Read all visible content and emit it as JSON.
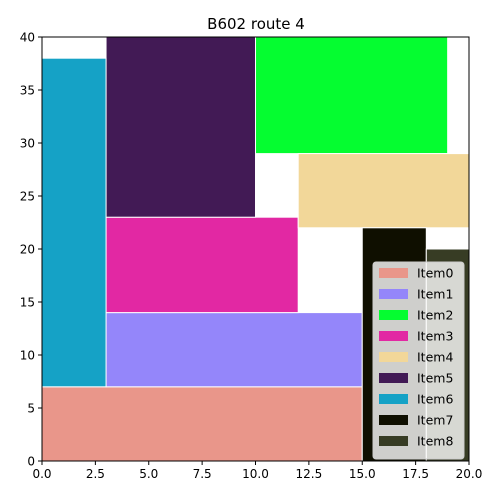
{
  "chart_data": {
    "type": "rect_packing",
    "title": "B602 route 4",
    "xlim": [
      0,
      20
    ],
    "ylim": [
      0,
      40
    ],
    "x_ticks": [
      {
        "value": 0,
        "label": "0.0"
      },
      {
        "value": 2.5,
        "label": "2.5"
      },
      {
        "value": 5,
        "label": "5.0"
      },
      {
        "value": 7.5,
        "label": "7.5"
      },
      {
        "value": 10,
        "label": "10.0"
      },
      {
        "value": 12.5,
        "label": "12.5"
      },
      {
        "value": 15,
        "label": "15.0"
      },
      {
        "value": 17.5,
        "label": "17.5"
      },
      {
        "value": 20,
        "label": "20.0"
      }
    ],
    "y_ticks": [
      {
        "value": 0,
        "label": "0"
      },
      {
        "value": 5,
        "label": "5"
      },
      {
        "value": 10,
        "label": "10"
      },
      {
        "value": 15,
        "label": "15"
      },
      {
        "value": 20,
        "label": "20"
      },
      {
        "value": 25,
        "label": "25"
      },
      {
        "value": 30,
        "label": "30"
      },
      {
        "value": 35,
        "label": "35"
      },
      {
        "value": 40,
        "label": "40"
      }
    ],
    "legend_position": "lower right",
    "grid": false,
    "items": [
      {
        "name": "Item0",
        "color": "#e9968a",
        "x": 0,
        "y": 0,
        "w": 15,
        "h": 7
      },
      {
        "name": "Item1",
        "color": "#9486fa",
        "x": 3,
        "y": 7,
        "w": 12,
        "h": 7
      },
      {
        "name": "Item2",
        "color": "#05fd30",
        "x": 10,
        "y": 29,
        "w": 9,
        "h": 11
      },
      {
        "name": "Item3",
        "color": "#e228a3",
        "x": 3,
        "y": 14,
        "w": 9,
        "h": 9
      },
      {
        "name": "Item4",
        "color": "#f2d799",
        "x": 12,
        "y": 22,
        "w": 8,
        "h": 7
      },
      {
        "name": "Item5",
        "color": "#421a55",
        "x": 3,
        "y": 23,
        "w": 7,
        "h": 17
      },
      {
        "name": "Item6",
        "color": "#15a2c6",
        "x": 0,
        "y": 7,
        "w": 3,
        "h": 31
      },
      {
        "name": "Item7",
        "color": "#0f0f00",
        "x": 15,
        "y": 0,
        "w": 3,
        "h": 22
      },
      {
        "name": "Item8",
        "color": "#373c24",
        "x": 18,
        "y": 0,
        "w": 2,
        "h": 20
      }
    ]
  }
}
